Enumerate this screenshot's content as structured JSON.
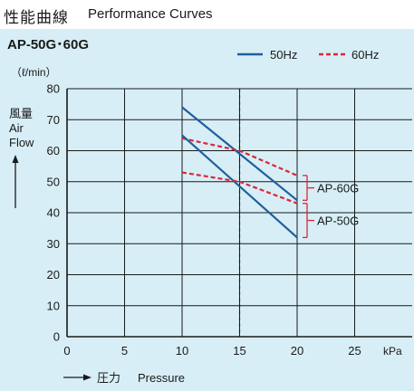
{
  "header": {
    "title_jp": "性能曲線",
    "title_en": "Performance Curves"
  },
  "chart_data": {
    "type": "line",
    "title": "AP-50G･60G",
    "ylabel_lines": [
      "（ℓ/min）",
      "風量",
      "Air",
      "Flow"
    ],
    "xlabel_lines": [
      "圧力",
      "Pressure"
    ],
    "x_unit": "kPa",
    "xlim": [
      0,
      30
    ],
    "ylim": [
      0,
      80
    ],
    "x_ticks": [
      0,
      5,
      10,
      15,
      20,
      25
    ],
    "y_ticks": [
      0,
      10,
      20,
      30,
      40,
      50,
      60,
      70,
      80
    ],
    "grid": true,
    "legend_position": "top-right",
    "legend": [
      {
        "label": "50Hz",
        "style": "solid",
        "color": "#1f5f9e"
      },
      {
        "label": "60Hz",
        "style": "dashed",
        "color": "#d8283a"
      }
    ],
    "series": [
      {
        "model": "AP-60G",
        "freq": "50Hz",
        "style": "solid",
        "color": "#1f5f9e",
        "x": [
          10,
          20
        ],
        "y": [
          74,
          44
        ]
      },
      {
        "model": "AP-60G",
        "freq": "60Hz",
        "style": "dashed",
        "color": "#d8283a",
        "x": [
          10,
          15,
          20
        ],
        "y": [
          64,
          60,
          52
        ]
      },
      {
        "model": "AP-50G",
        "freq": "50Hz",
        "style": "solid",
        "color": "#1f5f9e",
        "x": [
          10,
          20
        ],
        "y": [
          65,
          32
        ]
      },
      {
        "model": "AP-50G",
        "freq": "60Hz",
        "style": "dashed",
        "color": "#d8283a",
        "x": [
          10,
          15,
          20
        ],
        "y": [
          53,
          50,
          43
        ]
      }
    ],
    "rated_pressure_line": {
      "x": 15,
      "style": "dashed",
      "color": "#1a1a1a"
    },
    "annotations": [
      {
        "label": "AP-60G",
        "y_range": [
          44,
          52
        ],
        "color": "#d8283a"
      },
      {
        "label": "AP-50G",
        "y_range": [
          32,
          43
        ],
        "color": "#d8283a"
      }
    ]
  }
}
